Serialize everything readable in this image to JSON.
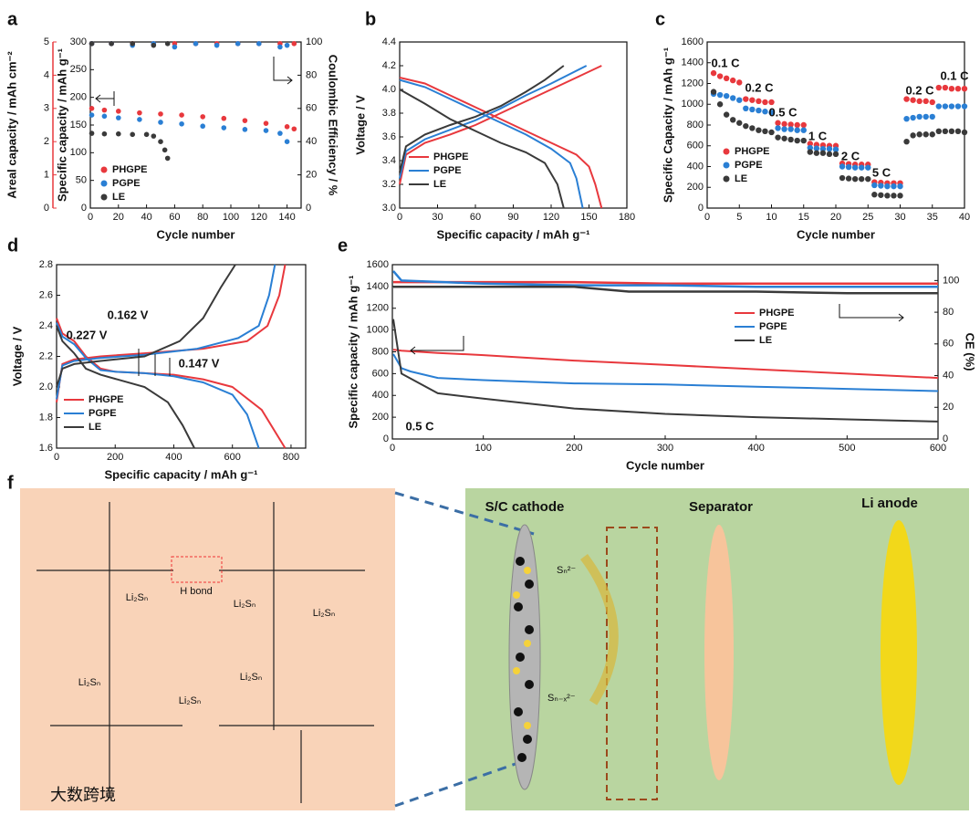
{
  "panels": [
    "a",
    "b",
    "c",
    "d",
    "e",
    "f"
  ],
  "chart_data": [
    {
      "type": "scatter",
      "xlabel": "Cycle number",
      "ylabel": "Specific capacity / mAh g⁻¹",
      "y2label": "Coulombic Efficiency / %",
      "y3label": "Areal capacity / mAh cm⁻²",
      "xlim": [
        0,
        150
      ],
      "xticks": [
        0,
        20,
        40,
        60,
        80,
        100,
        120,
        140
      ],
      "ylim": [
        0,
        300
      ],
      "yticks": [
        0,
        50,
        100,
        150,
        200,
        250,
        300
      ],
      "y2lim": [
        0,
        100
      ],
      "y2ticks": [
        0,
        20,
        40,
        60,
        80,
        100
      ],
      "y3lim": [
        0,
        5
      ],
      "y3ticks": [
        0,
        1,
        2,
        3,
        4,
        5
      ],
      "y3color": "#e8383d",
      "series": [
        {
          "name": "PHGPE",
          "color": "#e8383d",
          "x": [
            1,
            10,
            20,
            35,
            50,
            65,
            80,
            95,
            110,
            125,
            140,
            145
          ],
          "values": [
            180,
            177,
            175,
            172,
            170,
            168,
            165,
            162,
            158,
            153,
            147,
            143
          ]
        },
        {
          "name": "PGPE",
          "color": "#2a7fd4",
          "x": [
            1,
            10,
            20,
            35,
            50,
            65,
            80,
            95,
            110,
            125,
            135,
            140
          ],
          "values": [
            168,
            166,
            163,
            160,
            155,
            152,
            148,
            145,
            142,
            140,
            135,
            120
          ]
        },
        {
          "name": "LE",
          "color": "#3a3a3a",
          "x": [
            1,
            10,
            20,
            30,
            40,
            45,
            50,
            53,
            55
          ],
          "values": [
            135,
            134,
            134,
            133,
            133,
            130,
            120,
            105,
            90
          ]
        },
        {
          "color": "#e8383d",
          "axis": "y2",
          "x": [
            1,
            15,
            30,
            45,
            60,
            75,
            90,
            105,
            120,
            135,
            145
          ],
          "values": [
            99,
            99,
            99,
            99,
            99,
            99,
            99,
            99,
            99,
            99,
            99
          ]
        },
        {
          "color": "#2a7fd4",
          "axis": "y2",
          "x": [
            1,
            15,
            30,
            45,
            60,
            75,
            90,
            105,
            120,
            135,
            140
          ],
          "values": [
            99,
            99,
            98,
            99,
            97,
            99,
            98,
            99,
            99,
            97,
            98
          ]
        },
        {
          "color": "#3a3a3a",
          "axis": "y2",
          "x": [
            1,
            15,
            30,
            45,
            55
          ],
          "values": [
            99,
            99,
            99,
            98,
            99
          ]
        }
      ]
    },
    {
      "type": "line",
      "xlabel": "Specific capacity / mAh g⁻¹",
      "ylabel": "Voltage / V",
      "xlim": [
        0,
        180
      ],
      "xticks": [
        0,
        30,
        60,
        90,
        120,
        150,
        180
      ],
      "ylim": [
        3.0,
        4.4
      ],
      "yticks": [
        {
          "value": 3.0,
          "label": "3.0"
        },
        3.2,
        3.4,
        3.6,
        3.8,
        {
          "value": 4.0,
          "label": "4.0"
        },
        4.2,
        4.4
      ],
      "series": [
        {
          "name": "PHGPE",
          "color": "#e8383d",
          "x": [
            0,
            5,
            20,
            40,
            60,
            80,
            100,
            120,
            140,
            160,
            null,
            0,
            20,
            40,
            60,
            80,
            100,
            120,
            140,
            150,
            155,
            160
          ],
          "values": [
            3.2,
            3.45,
            3.55,
            3.62,
            3.7,
            3.8,
            3.9,
            4.0,
            4.1,
            4.2,
            null,
            4.1,
            4.05,
            3.95,
            3.85,
            3.75,
            3.65,
            3.55,
            3.45,
            3.35,
            3.2,
            3.0
          ]
        },
        {
          "name": "PGPE",
          "color": "#2a7fd4",
          "x": [
            0,
            5,
            20,
            40,
            60,
            80,
            100,
            120,
            148,
            null,
            0,
            20,
            40,
            60,
            80,
            100,
            120,
            135,
            140,
            145
          ],
          "values": [
            3.25,
            3.48,
            3.58,
            3.66,
            3.74,
            3.84,
            3.95,
            4.05,
            4.2,
            null,
            4.08,
            4.02,
            3.92,
            3.82,
            3.72,
            3.62,
            3.5,
            3.38,
            3.25,
            3.0
          ]
        },
        {
          "name": "LE",
          "color": "#3a3a3a",
          "x": [
            0,
            5,
            20,
            40,
            60,
            80,
            100,
            115,
            130,
            null,
            0,
            20,
            40,
            60,
            80,
            100,
            115,
            125,
            130
          ],
          "values": [
            3.3,
            3.52,
            3.62,
            3.7,
            3.77,
            3.86,
            3.98,
            4.08,
            4.2,
            null,
            4.0,
            3.88,
            3.75,
            3.65,
            3.55,
            3.47,
            3.38,
            3.2,
            3.0
          ]
        }
      ]
    },
    {
      "type": "scatter",
      "xlabel": "Cycle number",
      "ylabel": "Specific Capacity / mAh g⁻¹",
      "xlim": [
        0,
        40
      ],
      "xticks": [
        0,
        5,
        10,
        15,
        20,
        25,
        30,
        35,
        40
      ],
      "ylim": [
        0,
        1600
      ],
      "yticks": [
        0,
        200,
        400,
        600,
        800,
        1000,
        1200,
        1400,
        1600
      ],
      "annotations": [
        "0.1 C",
        "0.2 C",
        "0.5 C",
        "1 C",
        "2 C",
        "5 C",
        "0.2 C",
        "0.1 C"
      ],
      "series": [
        {
          "name": "PHGPE",
          "color": "#e8383d",
          "x": [
            1,
            2,
            3,
            4,
            5,
            6,
            7,
            8,
            9,
            10,
            11,
            12,
            13,
            14,
            15,
            16,
            17,
            18,
            19,
            20,
            21,
            22,
            23,
            24,
            25,
            26,
            27,
            28,
            29,
            30,
            31,
            32,
            33,
            34,
            35,
            36,
            37,
            38,
            39,
            40
          ],
          "values": [
            1300,
            1270,
            1250,
            1230,
            1210,
            1050,
            1040,
            1030,
            1020,
            1020,
            820,
            810,
            805,
            800,
            800,
            620,
            610,
            605,
            600,
            600,
            430,
            425,
            420,
            420,
            420,
            250,
            245,
            240,
            240,
            240,
            1050,
            1040,
            1030,
            1030,
            1020,
            1160,
            1160,
            1150,
            1150,
            1150
          ]
        },
        {
          "name": "PGPE",
          "color": "#2a7fd4",
          "x": [
            1,
            2,
            3,
            4,
            5,
            6,
            7,
            8,
            9,
            10,
            11,
            12,
            13,
            14,
            15,
            16,
            17,
            18,
            19,
            20,
            21,
            22,
            23,
            24,
            25,
            26,
            27,
            28,
            29,
            30,
            31,
            32,
            33,
            34,
            35,
            36,
            37,
            38,
            39,
            40
          ],
          "values": [
            1100,
            1090,
            1080,
            1060,
            1040,
            960,
            950,
            940,
            930,
            920,
            770,
            760,
            760,
            750,
            750,
            580,
            575,
            570,
            570,
            565,
            400,
            395,
            390,
            390,
            390,
            220,
            215,
            210,
            210,
            210,
            860,
            870,
            880,
            880,
            880,
            980,
            980,
            980,
            980,
            980
          ]
        },
        {
          "name": "LE",
          "color": "#3a3a3a",
          "x": [
            1,
            2,
            3,
            4,
            5,
            6,
            7,
            8,
            9,
            10,
            11,
            12,
            13,
            14,
            15,
            16,
            17,
            18,
            19,
            20,
            21,
            22,
            23,
            24,
            25,
            26,
            27,
            28,
            29,
            30,
            31,
            32,
            33,
            34,
            35,
            36,
            37,
            38,
            39,
            40
          ],
          "values": [
            1120,
            1000,
            900,
            850,
            820,
            790,
            770,
            750,
            740,
            730,
            680,
            670,
            660,
            650,
            650,
            540,
            530,
            530,
            520,
            520,
            290,
            285,
            280,
            280,
            280,
            130,
            125,
            120,
            120,
            120,
            640,
            700,
            710,
            710,
            710,
            740,
            740,
            740,
            740,
            730
          ]
        }
      ]
    },
    {
      "type": "line",
      "xlabel": "Specific capacity / mAh g⁻¹",
      "ylabel": "Voltage / V",
      "xlim": [
        0,
        850
      ],
      "xticks": [
        0,
        200,
        400,
        600,
        800
      ],
      "ylim": [
        1.6,
        2.8
      ],
      "yticks": [
        1.6,
        1.8,
        {
          "value": 2.0,
          "label": "2.0"
        },
        2.2,
        2.4,
        2.6,
        2.8
      ],
      "annotations": [
        "0.227 V",
        "0.162 V",
        "0.147 V"
      ],
      "series": [
        {
          "name": "PHGPE",
          "color": "#e8383d",
          "x": [
            0,
            20,
            60,
            100,
            150,
            200,
            300,
            400,
            500,
            600,
            700,
            780,
            null,
            0,
            20,
            60,
            150,
            300,
            500,
            650,
            720,
            760,
            780
          ],
          "values": [
            2.45,
            2.35,
            2.3,
            2.2,
            2.12,
            2.1,
            2.09,
            2.08,
            2.05,
            2.0,
            1.85,
            1.6,
            null,
            1.9,
            2.15,
            2.18,
            2.2,
            2.22,
            2.25,
            2.3,
            2.4,
            2.6,
            2.8
          ]
        },
        {
          "name": "PGPE",
          "color": "#2a7fd4",
          "x": [
            0,
            20,
            60,
            100,
            150,
            200,
            300,
            400,
            500,
            600,
            650,
            690,
            null,
            0,
            20,
            60,
            150,
            300,
            480,
            620,
            690,
            725,
            745
          ],
          "values": [
            2.42,
            2.33,
            2.28,
            2.19,
            2.11,
            2.1,
            2.09,
            2.07,
            2.03,
            1.95,
            1.82,
            1.6,
            null,
            1.92,
            2.14,
            2.17,
            2.19,
            2.21,
            2.25,
            2.32,
            2.4,
            2.6,
            2.8
          ]
        },
        {
          "name": "LE",
          "color": "#3a3a3a",
          "x": [
            0,
            20,
            60,
            100,
            150,
            300,
            380,
            430,
            470,
            null,
            0,
            20,
            60,
            150,
            300,
            420,
            500,
            560,
            610
          ],
          "values": [
            2.4,
            2.3,
            2.22,
            2.12,
            2.08,
            2.0,
            1.9,
            1.75,
            1.6,
            null,
            2.0,
            2.12,
            2.15,
            2.17,
            2.2,
            2.3,
            2.45,
            2.65,
            2.8
          ]
        }
      ]
    },
    {
      "type": "line",
      "xlabel": "Cycle number",
      "ylabel": "Specific capacity / mAh g⁻¹",
      "y2label": "CE (%)",
      "xlim": [
        0,
        600
      ],
      "xticks": [
        0,
        100,
        200,
        300,
        400,
        500,
        600
      ],
      "ylim": [
        0,
        1600
      ],
      "yticks": [
        0,
        200,
        400,
        600,
        800,
        1000,
        1200,
        1400,
        1600
      ],
      "y2lim": [
        0,
        110
      ],
      "y2ticks": [
        0,
        20,
        40,
        60,
        80,
        100
      ],
      "annotations": [
        "0.5 C"
      ],
      "series": [
        {
          "name": "PHGPE",
          "color": "#e8383d",
          "x": [
            1,
            10,
            50,
            100,
            200,
            300,
            400,
            500,
            600
          ],
          "values": [
            820,
            810,
            790,
            770,
            720,
            680,
            640,
            600,
            560
          ]
        },
        {
          "name": "PGPE",
          "color": "#2a7fd4",
          "x": [
            1,
            10,
            20,
            50,
            100,
            200,
            300,
            400,
            500,
            600
          ],
          "values": [
            780,
            650,
            620,
            560,
            540,
            510,
            500,
            480,
            460,
            440
          ]
        },
        {
          "name": "LE",
          "color": "#3a3a3a",
          "x": [
            1,
            10,
            50,
            100,
            200,
            300,
            400,
            500,
            600
          ],
          "values": [
            1100,
            600,
            420,
            370,
            280,
            230,
            200,
            180,
            160
          ]
        },
        {
          "color": "#e8383d",
          "axis": "y2",
          "x": [
            1,
            100,
            200,
            300,
            400,
            500,
            600
          ],
          "values": [
            99,
            99,
            99,
            98,
            98,
            98,
            98
          ]
        },
        {
          "color": "#2a7fd4",
          "axis": "y2",
          "x": [
            1,
            10,
            100,
            200,
            300,
            400,
            500,
            600
          ],
          "values": [
            106,
            100,
            98,
            97,
            97,
            96,
            96,
            96
          ]
        },
        {
          "color": "#3a3a3a",
          "axis": "y2",
          "x": [
            1,
            100,
            200,
            260,
            300,
            400,
            500,
            600
          ],
          "values": [
            96,
            96,
            96,
            93,
            93,
            93,
            92,
            92
          ]
        }
      ]
    }
  ],
  "diagram": {
    "h_bond": "H bond",
    "polysulfide": "Li₂Sₙ",
    "cathode": "S/C cathode",
    "separator": "Separator",
    "anode": "Li anode",
    "sn": "Sₙ²⁻",
    "snx": "Sₙ₋ₓ²⁻",
    "watermark": "大数跨境"
  }
}
